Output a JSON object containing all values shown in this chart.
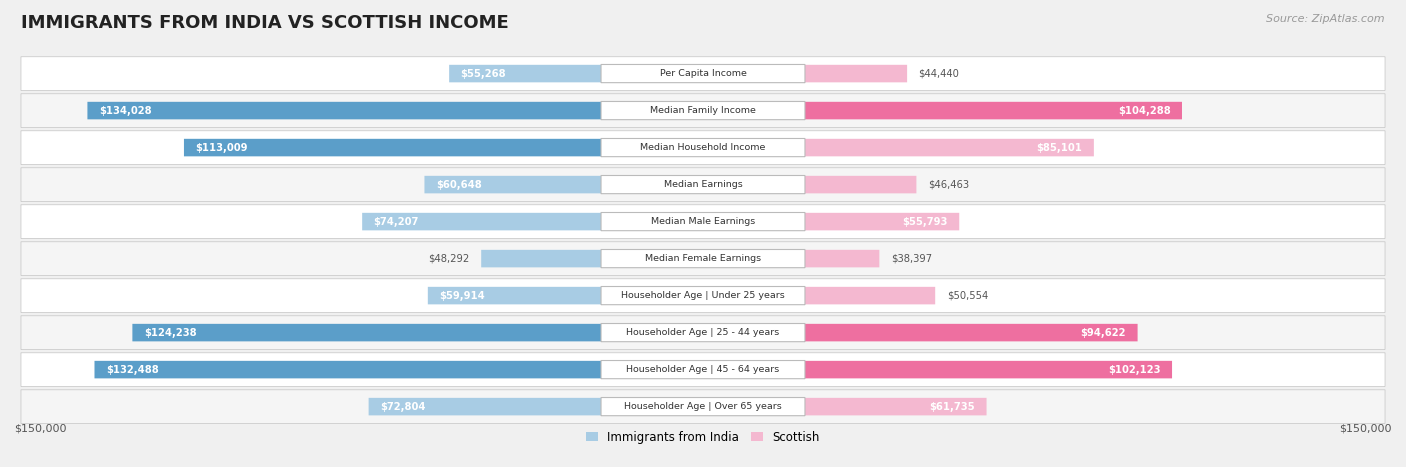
{
  "title": "IMMIGRANTS FROM INDIA VS SCOTTISH INCOME",
  "source": "Source: ZipAtlas.com",
  "categories": [
    "Per Capita Income",
    "Median Family Income",
    "Median Household Income",
    "Median Earnings",
    "Median Male Earnings",
    "Median Female Earnings",
    "Householder Age | Under 25 years",
    "Householder Age | 25 - 44 years",
    "Householder Age | 45 - 64 years",
    "Householder Age | Over 65 years"
  ],
  "india_values": [
    55268,
    134028,
    113009,
    60648,
    74207,
    48292,
    59914,
    124238,
    132488,
    72804
  ],
  "scottish_values": [
    44440,
    104288,
    85101,
    46463,
    55793,
    38397,
    50554,
    94622,
    102123,
    61735
  ],
  "india_labels": [
    "$55,268",
    "$134,028",
    "$113,009",
    "$60,648",
    "$74,207",
    "$48,292",
    "$59,914",
    "$124,238",
    "$132,488",
    "$72,804"
  ],
  "scottish_labels": [
    "$44,440",
    "$104,288",
    "$85,101",
    "$46,463",
    "$55,793",
    "$38,397",
    "$50,554",
    "$94,622",
    "$102,123",
    "$61,735"
  ],
  "india_color_light": "#a8cce4",
  "india_color_dark": "#5b9ec9",
  "scottish_color_light": "#f4b8d0",
  "scottish_color_dark": "#ee6fa0",
  "india_dark_rows": [
    1,
    2,
    7,
    8
  ],
  "scottish_dark_rows": [
    1,
    7,
    8
  ],
  "max_value": 150000,
  "background_color": "#f0f0f0",
  "row_bg_even": "#ffffff",
  "row_bg_odd": "#f5f5f5",
  "label_inside_color": "#ffffff",
  "label_outside_color": "#555555",
  "inside_threshold": 55000
}
